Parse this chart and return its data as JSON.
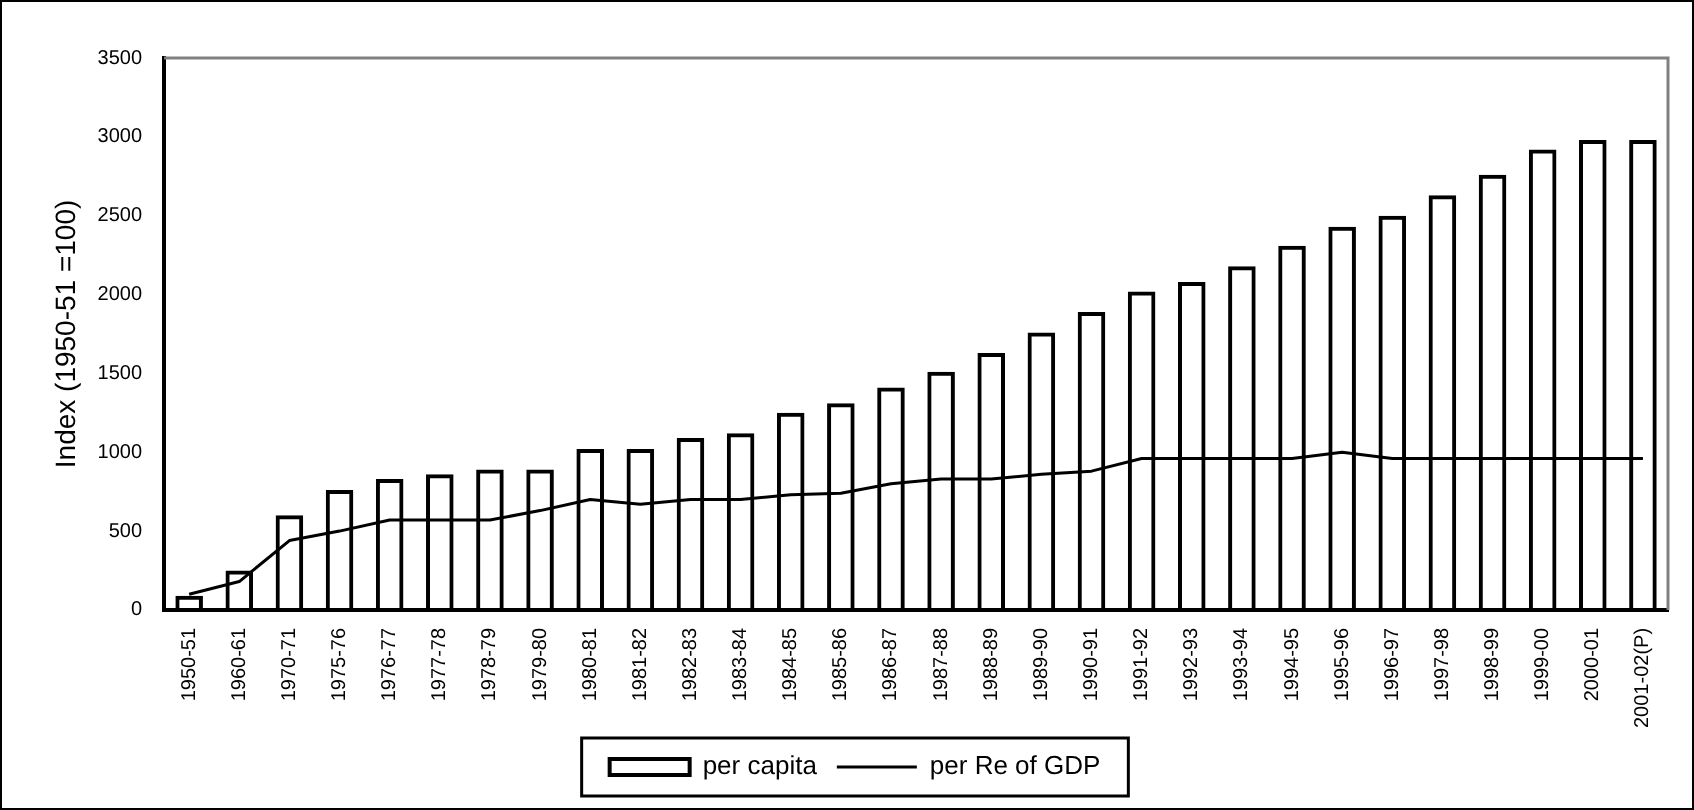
{
  "chart_data": {
    "type": "bar",
    "ylabel": "Index (1950-51 =100)",
    "categories": [
      "1950-51",
      "1960-61",
      "1970-71",
      "1975-76",
      "1976-77",
      "1977-78",
      "1978-79",
      "1979-80",
      "1980-81",
      "1981-82",
      "1982-83",
      "1983-84",
      "1984-85",
      "1985-86",
      "1986-87",
      "1987-88",
      "1988-89",
      "1989-90",
      "1990-91",
      "1991-92",
      "1992-93",
      "1993-94",
      "1994-95",
      "1995-96",
      "1996-97",
      "1997-98",
      "1998-99",
      "1999-00",
      "2000-01",
      "2001-02(P)"
    ],
    "series": [
      {
        "name": "per capita",
        "color": "#000000",
        "values": [
          90,
          250,
          600,
          760,
          830,
          860,
          890,
          890,
          1020,
          1020,
          1090,
          1120,
          1250,
          1310,
          1410,
          1510,
          1630,
          1760,
          1890,
          2020,
          2080,
          2180,
          2310,
          2430,
          2500,
          2630,
          2760,
          2920,
          2980,
          2980
        ]
      },
      {
        "name": "per Re of GDP",
        "type": "line",
        "color": "#000000",
        "values": [
          100,
          180,
          440,
          500,
          570,
          570,
          570,
          630,
          700,
          670,
          700,
          700,
          730,
          740,
          800,
          830,
          830,
          860,
          880,
          960,
          960,
          960,
          960,
          1000,
          960,
          960,
          960,
          960,
          960,
          960
        ]
      }
    ],
    "ylim": [
      0,
      3500
    ],
    "yticks": [
      0,
      500,
      1000,
      1500,
      2000,
      2500,
      3000,
      3500
    ],
    "grid": false,
    "legend": "bottom",
    "marker": "none",
    "line_style": "solid"
  }
}
